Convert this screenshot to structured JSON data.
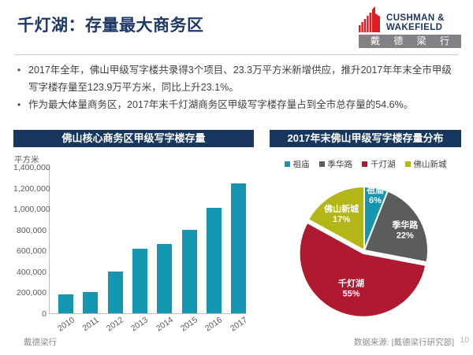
{
  "slide": {
    "title": "千灯湖：存量最大商务区",
    "logo": {
      "brand_line1": "CUSHMAN &",
      "brand_line2": "WAKEFIELD",
      "brand_cn": "戴 德 梁 行"
    },
    "bullets": [
      "2017年全年，佛山甲级写字楼共录得3个项目、23.3万平方米新增供应，推升2017年年末全市甲级写字楼存量至123.9万平方米，同比上升23.1%。",
      "作为最大体量商务区，2017年末千灯湖商务区甲级写字楼存量占到全市总存量的54.6%。"
    ],
    "footer": {
      "left": "戴德梁行",
      "source": "数据来源: [戴德梁行研究部]",
      "page": "10"
    }
  },
  "colors": {
    "title_navy": "#1f3864",
    "header_bar_navy": "#17375e",
    "bar_teal": "#1496b0",
    "logo_red": "#e11b22",
    "logo_gray": "#808285",
    "pie_zumiao_teal": "#1496b0",
    "pie_jihualu_gray": "#5a5c5e",
    "pie_qiandenghu_red": "#b01a31",
    "pie_foshanxincheng_lime": "#b3b617"
  },
  "chart_data": [
    {
      "type": "bar",
      "title": "佛山核心商务区甲级写字楼存量",
      "unit_label": "平方米",
      "categories": [
        "2010",
        "2011",
        "2012",
        "2013",
        "2014",
        "2015",
        "2016",
        "2017"
      ],
      "values": [
        180000,
        205000,
        400000,
        620000,
        665000,
        800000,
        1006000,
        1239000
      ],
      "xlabel": "",
      "ylabel": "平方米",
      "ylim": [
        0,
        1400000
      ],
      "ytick_step": 200000,
      "grid": false,
      "bar_color": "#1496b0"
    },
    {
      "type": "pie",
      "title": "2017年末佛山甲级写字楼存量分布",
      "labels": [
        "祖庙",
        "季华路",
        "千灯湖",
        "佛山新城"
      ],
      "values": [
        6,
        22,
        55,
        17
      ],
      "value_unit": "%",
      "colors": [
        "#1496b0",
        "#5a5c5e",
        "#b01a31",
        "#b3b617"
      ],
      "legend_position": "top",
      "start_angle_deg": 0,
      "direction": "clockwise"
    }
  ]
}
